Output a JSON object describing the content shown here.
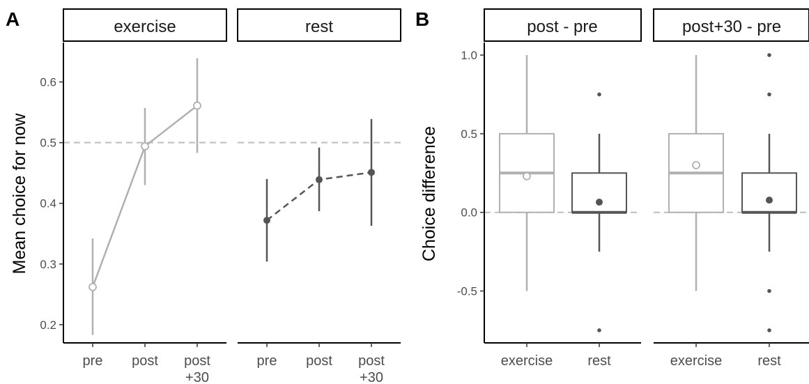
{
  "colors": {
    "exercise": "#b0b0b0",
    "rest": "#555555",
    "reference_line": "#bdbdbd",
    "axis": "#000000",
    "strip_border": "#000000"
  },
  "figure": {
    "panel_a_label": "A",
    "panel_b_label": "B"
  },
  "chart_data": [
    {
      "type": "line",
      "panel": "A",
      "ylabel": "Mean choice for now",
      "ylim": [
        0.17,
        0.665
      ],
      "yticks": [
        0.2,
        0.3,
        0.4,
        0.5,
        0.6
      ],
      "ytick_labels": [
        "0.2",
        "0.3",
        "0.4",
        "0.5",
        "0.6"
      ],
      "reference_line": 0.5,
      "facets": [
        {
          "strip": "exercise",
          "series_style": "solid, open circles",
          "x_labels": [
            "pre",
            "post",
            "post\n+30"
          ],
          "points": [
            {
              "mean": 0.262,
              "lower": 0.183,
              "upper": 0.342
            },
            {
              "mean": 0.494,
              "lower": 0.43,
              "upper": 0.557
            },
            {
              "mean": 0.561,
              "lower": 0.483,
              "upper": 0.639
            }
          ]
        },
        {
          "strip": "rest",
          "series_style": "dashed, filled circles",
          "x_labels": [
            "pre",
            "post",
            "post\n+30"
          ],
          "points": [
            {
              "mean": 0.372,
              "lower": 0.304,
              "upper": 0.44
            },
            {
              "mean": 0.439,
              "lower": 0.387,
              "upper": 0.492
            },
            {
              "mean": 0.451,
              "lower": 0.363,
              "upper": 0.539
            }
          ]
        }
      ]
    },
    {
      "type": "box",
      "panel": "B",
      "ylabel": "Choice difference",
      "ylim": [
        -0.83,
        1.08
      ],
      "yticks": [
        -0.5,
        0.0,
        0.5,
        1.0
      ],
      "ytick_labels": [
        "-0.5",
        "0.0",
        "0.5",
        "1.0"
      ],
      "reference_line": 0.0,
      "facets": [
        {
          "strip": "post - pre",
          "groups": [
            {
              "name": "exercise",
              "whisker_low": -0.5,
              "q1": 0.0,
              "median": 0.25,
              "q3": 0.5,
              "whisker_high": 1.0,
              "mean": 0.23,
              "outliers": []
            },
            {
              "name": "rest",
              "whisker_low": -0.25,
              "q1": 0.0,
              "median": 0.0,
              "q3": 0.25,
              "whisker_high": 0.5,
              "mean": 0.065,
              "outliers": [
                0.75,
                -0.75
              ]
            }
          ]
        },
        {
          "strip": "post+30 - pre",
          "groups": [
            {
              "name": "exercise",
              "whisker_low": -0.5,
              "q1": 0.0,
              "median": 0.25,
              "q3": 0.5,
              "whisker_high": 1.0,
              "mean": 0.3,
              "outliers": []
            },
            {
              "name": "rest",
              "whisker_low": -0.25,
              "q1": 0.0,
              "median": 0.0,
              "q3": 0.25,
              "whisker_high": 0.5,
              "mean": 0.078,
              "outliers": [
                1.0,
                0.75,
                -0.5,
                -0.75
              ]
            }
          ]
        }
      ]
    }
  ]
}
